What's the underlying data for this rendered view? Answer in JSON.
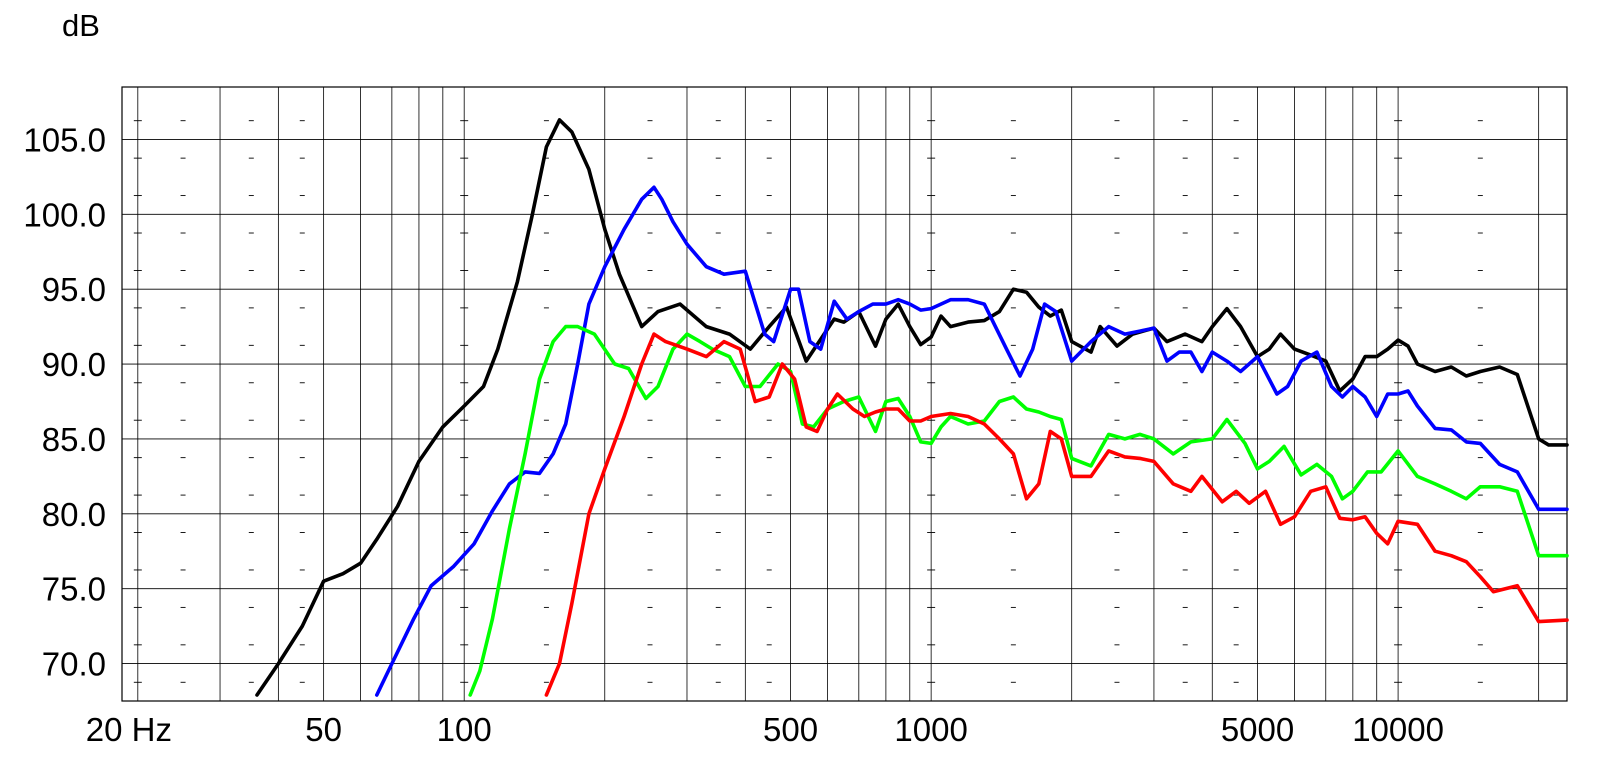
{
  "chart_data": {
    "type": "line",
    "title": "",
    "ylabel": "dB",
    "xlabel": "",
    "x_scale": "log",
    "xlim": [
      18.5,
      23000
    ],
    "ylim": [
      67.5,
      108.5
    ],
    "grid": true,
    "x_tick_labels": [
      {
        "value": 20,
        "label": "20 Hz"
      },
      {
        "value": 50,
        "label": "50"
      },
      {
        "value": 100,
        "label": "100"
      },
      {
        "value": 500,
        "label": "500"
      },
      {
        "value": 1000,
        "label": "1000"
      },
      {
        "value": 5000,
        "label": "5000"
      },
      {
        "value": 10000,
        "label": "10000"
      }
    ],
    "y_tick_labels": [
      {
        "value": 70,
        "label": "70.0"
      },
      {
        "value": 75,
        "label": "75.0"
      },
      {
        "value": 80,
        "label": "80.0"
      },
      {
        "value": 85,
        "label": "85.0"
      },
      {
        "value": 90,
        "label": "90.0"
      },
      {
        "value": 95,
        "label": "95.0"
      },
      {
        "value": 100,
        "label": "100.0"
      },
      {
        "value": 105,
        "label": "105.0"
      }
    ],
    "series": [
      {
        "color": "#000000",
        "points": [
          [
            36,
            67.9
          ],
          [
            40,
            70
          ],
          [
            45,
            72.5
          ],
          [
            50,
            75.5
          ],
          [
            55,
            76
          ],
          [
            60,
            76.7
          ],
          [
            65,
            78.3
          ],
          [
            72,
            80.5
          ],
          [
            80,
            83.5
          ],
          [
            90,
            85.8
          ],
          [
            100,
            87.2
          ],
          [
            110,
            88.5
          ],
          [
            118,
            91
          ],
          [
            130,
            95.5
          ],
          [
            140,
            100
          ],
          [
            150,
            104.5
          ],
          [
            160,
            106.3
          ],
          [
            170,
            105.5
          ],
          [
            185,
            103
          ],
          [
            200,
            99
          ],
          [
            215,
            96
          ],
          [
            240,
            92.5
          ],
          [
            260,
            93.5
          ],
          [
            290,
            94
          ],
          [
            330,
            92.5
          ],
          [
            370,
            92
          ],
          [
            410,
            91
          ],
          [
            450,
            92.5
          ],
          [
            490,
            93.8
          ],
          [
            540,
            90.2
          ],
          [
            590,
            92
          ],
          [
            620,
            93
          ],
          [
            650,
            92.8
          ],
          [
            700,
            93.5
          ],
          [
            760,
            91.2
          ],
          [
            800,
            93
          ],
          [
            850,
            94
          ],
          [
            900,
            92.5
          ],
          [
            950,
            91.3
          ],
          [
            1000,
            91.8
          ],
          [
            1050,
            93.2
          ],
          [
            1100,
            92.5
          ],
          [
            1200,
            92.8
          ],
          [
            1300,
            92.9
          ],
          [
            1400,
            93.5
          ],
          [
            1500,
            95
          ],
          [
            1600,
            94.8
          ],
          [
            1700,
            93.8
          ],
          [
            1800,
            93.2
          ],
          [
            1900,
            93.6
          ],
          [
            2000,
            91.5
          ],
          [
            2200,
            90.8
          ],
          [
            2300,
            92.5
          ],
          [
            2500,
            91.2
          ],
          [
            2700,
            92
          ],
          [
            3000,
            92.4
          ],
          [
            3200,
            91.5
          ],
          [
            3500,
            92
          ],
          [
            3800,
            91.5
          ],
          [
            4000,
            92.5
          ],
          [
            4300,
            93.7
          ],
          [
            4600,
            92.5
          ],
          [
            5000,
            90.5
          ],
          [
            5300,
            91
          ],
          [
            5600,
            92
          ],
          [
            6000,
            91
          ],
          [
            6500,
            90.6
          ],
          [
            7000,
            90.2
          ],
          [
            7500,
            88.2
          ],
          [
            8000,
            89
          ],
          [
            8500,
            90.5
          ],
          [
            9000,
            90.5
          ],
          [
            9500,
            91
          ],
          [
            10000,
            91.6
          ],
          [
            10500,
            91.2
          ],
          [
            11000,
            90
          ],
          [
            12000,
            89.5
          ],
          [
            13000,
            89.8
          ],
          [
            14000,
            89.2
          ],
          [
            15000,
            89.5
          ],
          [
            16500,
            89.8
          ],
          [
            18000,
            89.3
          ],
          [
            20000,
            85
          ],
          [
            21000,
            84.6
          ],
          [
            23000,
            84.6
          ]
        ]
      },
      {
        "color": "#0000ff",
        "points": [
          [
            65,
            67.9
          ],
          [
            70,
            70
          ],
          [
            78,
            73
          ],
          [
            85,
            75.2
          ],
          [
            95,
            76.5
          ],
          [
            105,
            78
          ],
          [
            115,
            80.2
          ],
          [
            125,
            82
          ],
          [
            135,
            82.8
          ],
          [
            145,
            82.7
          ],
          [
            155,
            84
          ],
          [
            165,
            86
          ],
          [
            175,
            90
          ],
          [
            185,
            94
          ],
          [
            200,
            96.5
          ],
          [
            220,
            99
          ],
          [
            240,
            101
          ],
          [
            255,
            101.8
          ],
          [
            265,
            101
          ],
          [
            280,
            99.5
          ],
          [
            300,
            98
          ],
          [
            330,
            96.5
          ],
          [
            360,
            96
          ],
          [
            400,
            96.2
          ],
          [
            440,
            92
          ],
          [
            460,
            91.5
          ],
          [
            500,
            95
          ],
          [
            520,
            95
          ],
          [
            550,
            91.5
          ],
          [
            580,
            91
          ],
          [
            620,
            94.2
          ],
          [
            660,
            93
          ],
          [
            700,
            93.5
          ],
          [
            750,
            94
          ],
          [
            800,
            94
          ],
          [
            850,
            94.3
          ],
          [
            900,
            94
          ],
          [
            950,
            93.6
          ],
          [
            1000,
            93.7
          ],
          [
            1100,
            94.3
          ],
          [
            1200,
            94.3
          ],
          [
            1300,
            94
          ],
          [
            1450,
            91
          ],
          [
            1550,
            89.2
          ],
          [
            1650,
            91
          ],
          [
            1750,
            94
          ],
          [
            1850,
            93.5
          ],
          [
            2000,
            90.2
          ],
          [
            2200,
            91.5
          ],
          [
            2400,
            92.5
          ],
          [
            2600,
            92
          ],
          [
            2800,
            92.2
          ],
          [
            3000,
            92.4
          ],
          [
            3200,
            90.2
          ],
          [
            3400,
            90.8
          ],
          [
            3600,
            90.8
          ],
          [
            3800,
            89.5
          ],
          [
            4000,
            90.8
          ],
          [
            4300,
            90.2
          ],
          [
            4600,
            89.5
          ],
          [
            5000,
            90.5
          ],
          [
            5500,
            88
          ],
          [
            5800,
            88.5
          ],
          [
            6200,
            90.2
          ],
          [
            6700,
            90.8
          ],
          [
            7200,
            88.5
          ],
          [
            7600,
            87.8
          ],
          [
            8000,
            88.5
          ],
          [
            8500,
            87.8
          ],
          [
            9000,
            86.5
          ],
          [
            9500,
            88
          ],
          [
            10000,
            88
          ],
          [
            10500,
            88.2
          ],
          [
            11000,
            87.2
          ],
          [
            12000,
            85.7
          ],
          [
            13000,
            85.6
          ],
          [
            14000,
            84.8
          ],
          [
            15000,
            84.7
          ],
          [
            16500,
            83.3
          ],
          [
            18000,
            82.8
          ],
          [
            20000,
            80.3
          ],
          [
            23000,
            80.3
          ]
        ]
      },
      {
        "color": "#00ff00",
        "points": [
          [
            103,
            67.9
          ],
          [
            108,
            69.5
          ],
          [
            115,
            73
          ],
          [
            125,
            79
          ],
          [
            135,
            84
          ],
          [
            145,
            89
          ],
          [
            155,
            91.5
          ],
          [
            165,
            92.5
          ],
          [
            175,
            92.5
          ],
          [
            190,
            92
          ],
          [
            210,
            90
          ],
          [
            225,
            89.7
          ],
          [
            245,
            87.7
          ],
          [
            260,
            88.5
          ],
          [
            280,
            91
          ],
          [
            300,
            92
          ],
          [
            320,
            91.5
          ],
          [
            340,
            91
          ],
          [
            370,
            90.5
          ],
          [
            400,
            88.5
          ],
          [
            430,
            88.5
          ],
          [
            470,
            90
          ],
          [
            500,
            89.5
          ],
          [
            530,
            86
          ],
          [
            560,
            85.8
          ],
          [
            600,
            87
          ],
          [
            650,
            87.5
          ],
          [
            700,
            87.8
          ],
          [
            760,
            85.5
          ],
          [
            800,
            87.5
          ],
          [
            850,
            87.7
          ],
          [
            900,
            86.5
          ],
          [
            950,
            84.8
          ],
          [
            1000,
            84.7
          ],
          [
            1050,
            85.8
          ],
          [
            1100,
            86.5
          ],
          [
            1200,
            86
          ],
          [
            1300,
            86.2
          ],
          [
            1400,
            87.5
          ],
          [
            1500,
            87.8
          ],
          [
            1600,
            87
          ],
          [
            1700,
            86.8
          ],
          [
            1800,
            86.5
          ],
          [
            1900,
            86.3
          ],
          [
            2000,
            83.7
          ],
          [
            2200,
            83.2
          ],
          [
            2400,
            85.3
          ],
          [
            2600,
            85
          ],
          [
            2800,
            85.3
          ],
          [
            3000,
            85
          ],
          [
            3300,
            84
          ],
          [
            3600,
            84.8
          ],
          [
            4000,
            85
          ],
          [
            4300,
            86.3
          ],
          [
            4700,
            84.7
          ],
          [
            5000,
            83
          ],
          [
            5300,
            83.5
          ],
          [
            5700,
            84.5
          ],
          [
            6200,
            82.6
          ],
          [
            6700,
            83.3
          ],
          [
            7200,
            82.5
          ],
          [
            7600,
            81
          ],
          [
            8000,
            81.5
          ],
          [
            8600,
            82.8
          ],
          [
            9200,
            82.8
          ],
          [
            10000,
            84.2
          ],
          [
            11000,
            82.5
          ],
          [
            12000,
            82
          ],
          [
            13000,
            81.5
          ],
          [
            14000,
            81
          ],
          [
            15000,
            81.8
          ],
          [
            16500,
            81.8
          ],
          [
            18000,
            81.5
          ],
          [
            20000,
            77.2
          ],
          [
            23000,
            77.2
          ]
        ]
      },
      {
        "color": "#ff0000",
        "points": [
          [
            150,
            67.9
          ],
          [
            160,
            70
          ],
          [
            170,
            74
          ],
          [
            185,
            80
          ],
          [
            200,
            83
          ],
          [
            220,
            86.5
          ],
          [
            240,
            90
          ],
          [
            255,
            92
          ],
          [
            270,
            91.5
          ],
          [
            300,
            91
          ],
          [
            330,
            90.5
          ],
          [
            360,
            91.5
          ],
          [
            390,
            91
          ],
          [
            420,
            87.5
          ],
          [
            450,
            87.8
          ],
          [
            480,
            90
          ],
          [
            510,
            89
          ],
          [
            540,
            85.8
          ],
          [
            570,
            85.5
          ],
          [
            600,
            87
          ],
          [
            630,
            88
          ],
          [
            680,
            87
          ],
          [
            720,
            86.5
          ],
          [
            760,
            86.8
          ],
          [
            800,
            87
          ],
          [
            850,
            87
          ],
          [
            900,
            86.2
          ],
          [
            950,
            86.2
          ],
          [
            1000,
            86.5
          ],
          [
            1100,
            86.7
          ],
          [
            1200,
            86.5
          ],
          [
            1300,
            86
          ],
          [
            1400,
            85
          ],
          [
            1500,
            84
          ],
          [
            1600,
            81
          ],
          [
            1700,
            82
          ],
          [
            1800,
            85.5
          ],
          [
            1900,
            85
          ],
          [
            2000,
            82.5
          ],
          [
            2200,
            82.5
          ],
          [
            2400,
            84.2
          ],
          [
            2600,
            83.8
          ],
          [
            2800,
            83.7
          ],
          [
            3000,
            83.5
          ],
          [
            3300,
            82
          ],
          [
            3600,
            81.5
          ],
          [
            3800,
            82.5
          ],
          [
            4200,
            80.8
          ],
          [
            4500,
            81.5
          ],
          [
            4800,
            80.7
          ],
          [
            5200,
            81.5
          ],
          [
            5600,
            79.3
          ],
          [
            6000,
            79.8
          ],
          [
            6500,
            81.5
          ],
          [
            7000,
            81.8
          ],
          [
            7500,
            79.7
          ],
          [
            8000,
            79.6
          ],
          [
            8500,
            79.8
          ],
          [
            9000,
            78.7
          ],
          [
            9500,
            78
          ],
          [
            10000,
            79.5
          ],
          [
            11000,
            79.3
          ],
          [
            12000,
            77.5
          ],
          [
            13000,
            77.2
          ],
          [
            14000,
            76.8
          ],
          [
            15000,
            75.8
          ],
          [
            16000,
            74.8
          ],
          [
            18000,
            75.2
          ],
          [
            20000,
            72.8
          ],
          [
            23000,
            72.9
          ]
        ]
      }
    ]
  }
}
